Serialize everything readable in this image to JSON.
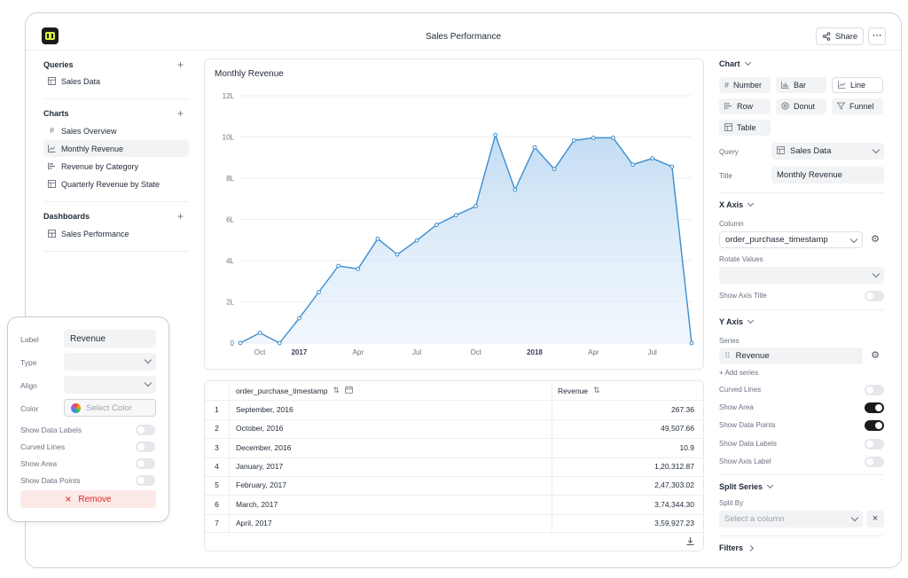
{
  "header": {
    "title": "Sales Performance",
    "share_label": "Share",
    "more_label": "⋯"
  },
  "sidebar": {
    "sections": [
      {
        "title": "Queries",
        "items": [
          {
            "label": "Sales Data",
            "icon": "table-icon"
          }
        ]
      },
      {
        "title": "Charts",
        "items": [
          {
            "label": "Sales Overview",
            "icon": "hash-icon"
          },
          {
            "label": "Monthly Revenue",
            "icon": "line-chart-icon",
            "active": true
          },
          {
            "label": "Revenue by Category",
            "icon": "bar-row-icon"
          },
          {
            "label": "Quarterly Revenue by State",
            "icon": "table-icon"
          }
        ]
      },
      {
        "title": "Dashboards",
        "items": [
          {
            "label": "Sales Performance",
            "icon": "dashboard-icon"
          }
        ]
      }
    ]
  },
  "chart": {
    "title": "Monthly Revenue"
  },
  "chart_data": {
    "type": "area",
    "title": "Monthly Revenue",
    "x": [
      "2016-09",
      "2016-10",
      "2016-12",
      "2017-01",
      "2017-02",
      "2017-03",
      "2017-04",
      "2017-05",
      "2017-06",
      "2017-07",
      "2017-08",
      "2017-09",
      "2017-10",
      "2017-11",
      "2017-12",
      "2018-01",
      "2018-02",
      "2018-03",
      "2018-04",
      "2018-05",
      "2018-06",
      "2018-07",
      "2018-08",
      "2018-09"
    ],
    "x_tick_labels": [
      "Oct",
      "2017",
      "Apr",
      "Jul",
      "Oct",
      "2018",
      "Apr",
      "Jul"
    ],
    "y_tick_labels": [
      "0",
      "2L",
      "4L",
      "6L",
      "8L",
      "10L",
      "12L"
    ],
    "ylim": [
      0,
      1200000
    ],
    "series": [
      {
        "name": "Revenue",
        "values": [
          267.36,
          49507.66,
          10.9,
          120312.87,
          247303.02,
          374344.3,
          359927.23,
          506071.14,
          430000,
          498000,
          574000,
          621000,
          664000,
          1010000,
          744000,
          950000,
          844000,
          983000,
          996000,
          996000,
          866000,
          896000,
          856000,
          0
        ]
      }
    ],
    "grid": true,
    "legend": "none"
  },
  "table": {
    "columns": [
      "order_purchase_timestamp",
      "Revenue"
    ],
    "rows": [
      {
        "n": "1",
        "date": "September, 2016",
        "revenue": "267.36"
      },
      {
        "n": "2",
        "date": "October, 2016",
        "revenue": "49,507.66"
      },
      {
        "n": "3",
        "date": "December, 2016",
        "revenue": "10.9"
      },
      {
        "n": "4",
        "date": "January, 2017",
        "revenue": "1,20,312.87"
      },
      {
        "n": "5",
        "date": "February, 2017",
        "revenue": "2,47,303.02"
      },
      {
        "n": "6",
        "date": "March, 2017",
        "revenue": "3,74,344.30"
      },
      {
        "n": "7",
        "date": "April, 2017",
        "revenue": "3,59,927.23"
      }
    ]
  },
  "right_panel": {
    "chart_heading": "Chart",
    "chart_types": [
      "Number",
      "Bar",
      "Line",
      "Row",
      "Donut",
      "Funnel",
      "Table"
    ],
    "query_label": "Query",
    "query_value": "Sales Data",
    "title_label": "Title",
    "title_value": "Monthly Revenue",
    "x_axis_heading": "X Axis",
    "column_label": "Column",
    "column_value": "order_purchase_timestamp",
    "rotate_label": "Rotate Values",
    "show_axis_title_label": "Show Axis Title",
    "y_axis_heading": "Y Axis",
    "series_label": "Series",
    "series_value": "Revenue",
    "add_series_label": "+ Add series",
    "y_toggles": [
      {
        "label": "Curved Lines",
        "on": false
      },
      {
        "label": "Show Area",
        "on": true
      },
      {
        "label": "Show Data Points",
        "on": true
      },
      {
        "label": "Show Data Labels",
        "on": false
      },
      {
        "label": "Show Axis Label",
        "on": false
      }
    ],
    "split_heading": "Split Series",
    "split_by_label": "Split By",
    "split_placeholder": "Select a column",
    "filters_heading": "Filters"
  },
  "popup": {
    "label_label": "Label",
    "label_value": "Revenue",
    "type_label": "Type",
    "align_label": "Align",
    "color_label": "Color",
    "color_placeholder": "Select Color",
    "toggles": [
      "Show Data Labels",
      "Curved Lines",
      "Show Area",
      "Show Data Points"
    ],
    "remove_label": "Remove"
  }
}
